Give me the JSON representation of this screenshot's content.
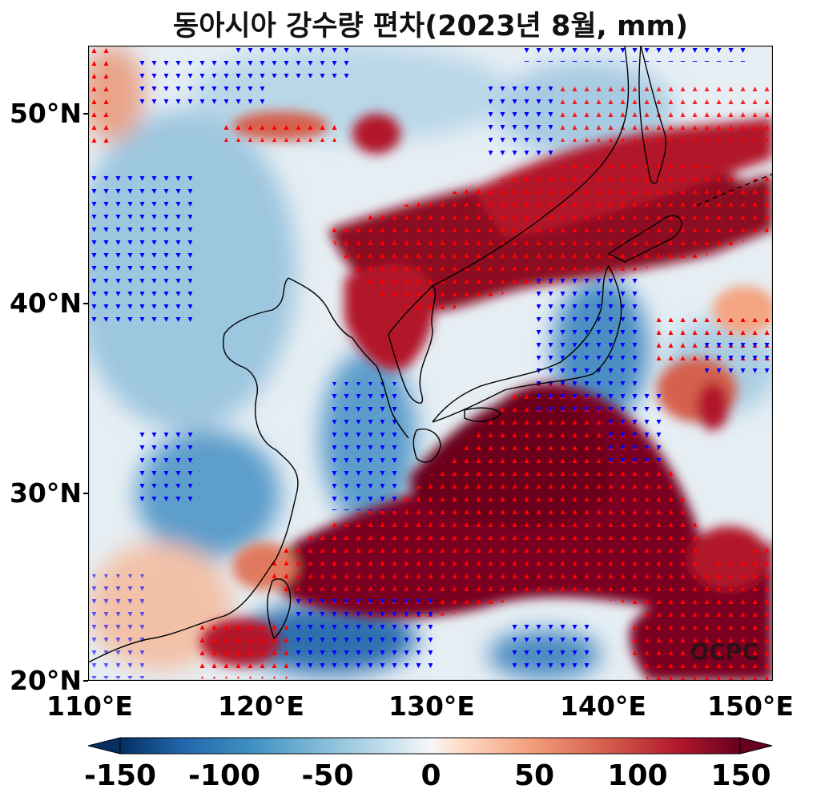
{
  "title": "동아시아 강수량 편차(2023년 8월, mm)",
  "watermark": "OCPC",
  "axes": {
    "lat_labels": [
      "50°N",
      "40°N",
      "30°N",
      "20°N"
    ],
    "lon_labels": [
      "110°E",
      "120°E",
      "130°E",
      "140°E",
      "150°E"
    ],
    "lat_range": [
      20,
      53.5
    ],
    "lon_range": [
      110,
      150
    ]
  },
  "colorbar": {
    "labels": [
      "-150",
      "-100",
      "-50",
      "0",
      "50",
      "100",
      "150"
    ],
    "range": [
      -150,
      150
    ],
    "extend": "both",
    "colormap": [
      "#053061",
      "#2166ac",
      "#4393c3",
      "#92c5de",
      "#d1e5f0",
      "#f7f7f7",
      "#fddbc7",
      "#f4a582",
      "#d6604d",
      "#b2182b",
      "#67001f"
    ]
  },
  "markers": {
    "positive_color": "#ff0000",
    "negative_color": "#0000ff"
  }
}
